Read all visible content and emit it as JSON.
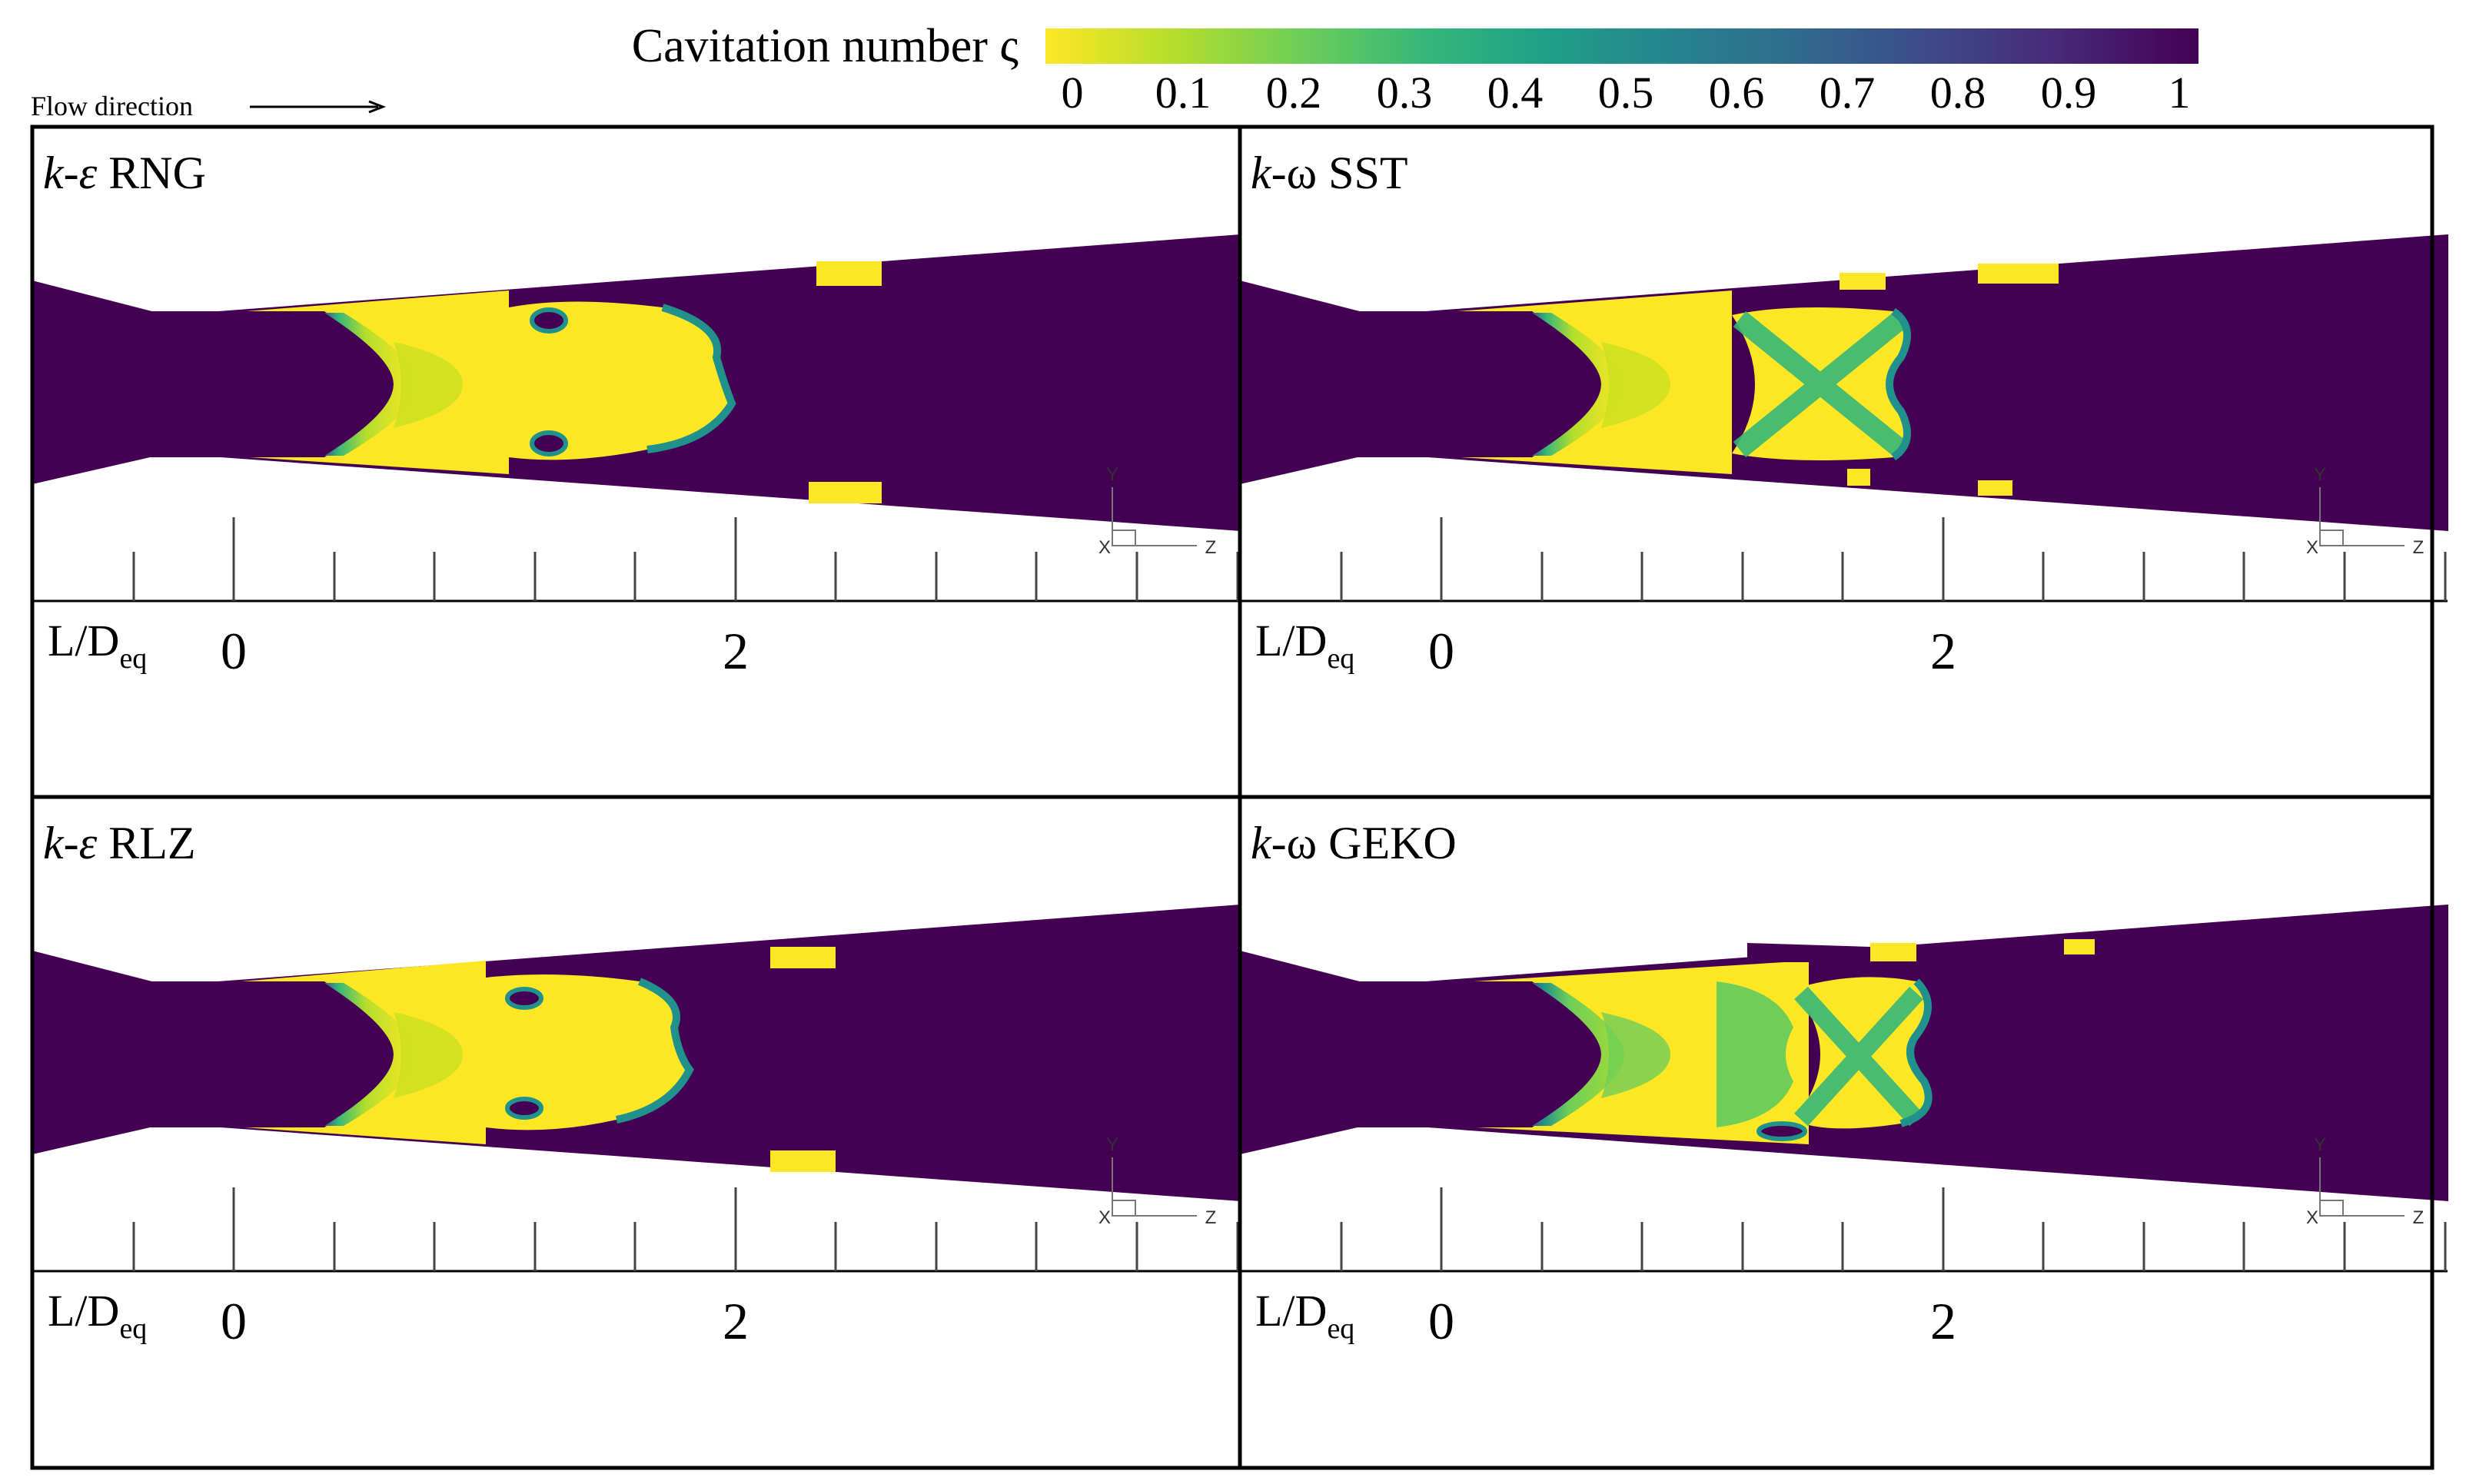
{
  "colorbar": {
    "title": "Cavitation number ς",
    "ticks": [
      "0",
      "0.1",
      "0.2",
      "0.3",
      "0.4",
      "0.5",
      "0.6",
      "0.7",
      "0.8",
      "0.9",
      "1"
    ],
    "tick_values": [
      0,
      0.1,
      0.2,
      0.3,
      0.4,
      0.5,
      0.6,
      0.7,
      0.8,
      0.9,
      1
    ],
    "colors": [
      "#fde725",
      "#b5de2b",
      "#6ece58",
      "#35b779",
      "#1f9e89",
      "#26828e",
      "#31688e",
      "#3e4989",
      "#482878",
      "#440154"
    ]
  },
  "flow_label": "Flow direction",
  "panels": [
    {
      "title_italic": "k-ε",
      "title": " RNG",
      "variant": "rng"
    },
    {
      "title_italic": "k-",
      "title": "ω SST",
      "variant": "sst"
    },
    {
      "title_italic": "k-ε",
      "title": " RLZ",
      "variant": "rlz"
    },
    {
      "title_italic": "k-",
      "title": "ω GEKO",
      "variant": "geko"
    }
  ],
  "axis_label": "L/D",
  "axis_label_sub": "eq",
  "scale_labels": [
    "0",
    "2"
  ],
  "axes_triad": {
    "y": "Y",
    "x": "X",
    "z": "Z"
  },
  "palette": {
    "liquid": "#440154",
    "vapor": "#fde725",
    "mid": "#35b779",
    "edge": "#3b528b",
    "teal": "#21918c",
    "frame": "#000000"
  }
}
